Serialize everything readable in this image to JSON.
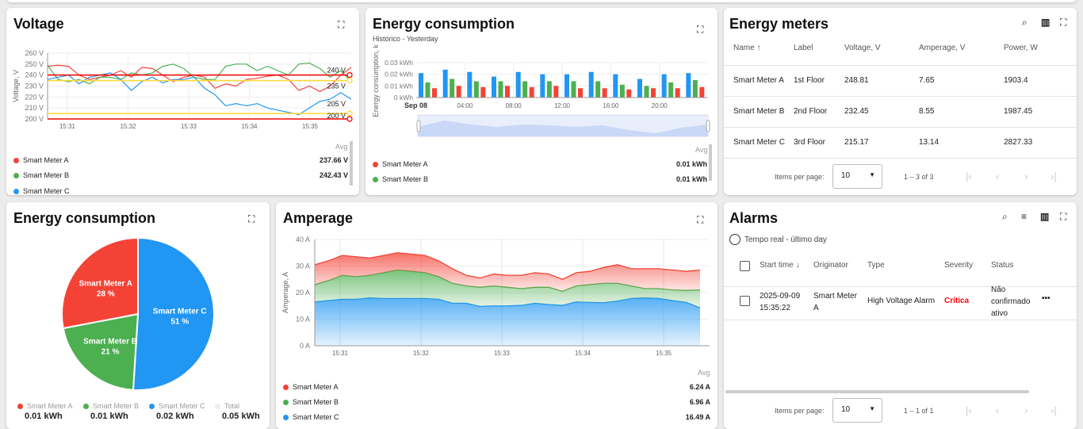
{
  "colors": {
    "a": "#f44336",
    "b": "#4caf50",
    "c": "#2196f3",
    "yellow": "#fdd835",
    "red": "#f00"
  },
  "voltage": {
    "title": "Voltage",
    "ylabel": "Voltage, V",
    "avg_label": "Avg",
    "legend": [
      {
        "name": "Smart Meter A",
        "avg": "237.66 V"
      },
      {
        "name": "Smart Meter B",
        "avg": "242.43 V"
      },
      {
        "name": "Smart Meter C"
      }
    ]
  },
  "energy_bar": {
    "title": "Energy consumption",
    "subtitle": "Histórico - Yesterday",
    "ylabel": "Energy consumption, k",
    "avg_label": "Avg",
    "legend": [
      {
        "name": "Smart Meter A",
        "avg": "0.01 kWh"
      },
      {
        "name": "Smart Meter B",
        "avg": "0.01 kWh"
      }
    ]
  },
  "meters": {
    "title": "Energy meters",
    "columns": [
      "Name",
      "Label",
      "Voltage, V",
      "Amperage, V",
      "Power, W"
    ],
    "rows": [
      [
        "Smart Meter A",
        "1st Floor",
        "248.81",
        "7.65",
        "1903.4"
      ],
      [
        "Smart Meter B",
        "2nd Floor",
        "232.45",
        "8.55",
        "1987.45"
      ],
      [
        "Smart Meter C",
        "3rd Floor",
        "215.17",
        "13.14",
        "2827.33"
      ]
    ],
    "items_per_page_label": "Items per page:",
    "items_per_page": "10",
    "range": "1 – 3 of 3"
  },
  "pie": {
    "title": "Energy consumption",
    "legend": [
      {
        "name": "Smart Meter A",
        "value": "0.01 kWh"
      },
      {
        "name": "Smart Meter B",
        "value": "0.01 kWh"
      },
      {
        "name": "Smart Meter C",
        "value": "0.02 kWh"
      },
      {
        "name": "Total",
        "value": "0.05 kWh"
      }
    ]
  },
  "amperage": {
    "title": "Amperage",
    "ylabel": "Amperage, A",
    "avg_label": "Avg",
    "legend": [
      {
        "name": "Smart Meter A",
        "avg": "6.24 A"
      },
      {
        "name": "Smart Meter B",
        "avg": "6.96 A"
      },
      {
        "name": "Smart Meter C",
        "avg": "16.49 A"
      }
    ]
  },
  "alarms": {
    "title": "Alarms",
    "timewindow": "Tempo real - último day",
    "columns": [
      "Start time",
      "Originator",
      "Type",
      "Severity",
      "Status"
    ],
    "rows": [
      {
        "start_time": "2025-09-09 15:35:22",
        "originator": "Smart Meter A",
        "type": "High Voltage Alarm",
        "severity": "Crítica",
        "status": "Não confirmado ativo"
      }
    ],
    "items_per_page_label": "Items per page:",
    "items_per_page": "10",
    "range": "1 – 1 of 1"
  },
  "chart_data": [
    {
      "type": "line",
      "title": "Voltage",
      "ylabel": "Voltage, V",
      "ylim": [
        200,
        260
      ],
      "yticks": [
        "200 V",
        "210 V",
        "220 V",
        "230 V",
        "240 V",
        "250 V",
        "260 V"
      ],
      "x_start": "15:30:40",
      "x_end": "15:35:40",
      "xticks": [
        "15:31",
        "15:32",
        "15:33",
        "15:34",
        "15:35"
      ],
      "thresholds": [
        {
          "value": 240,
          "label": "240 V",
          "color": "red"
        },
        {
          "value": 235,
          "label": "235 V",
          "color": "yellow"
        },
        {
          "value": 205,
          "label": "205 V",
          "color": "yellow"
        },
        {
          "value": 200,
          "label": "200 V",
          "color": "red"
        }
      ],
      "series": [
        {
          "name": "Smart Meter A",
          "color": "#f44336",
          "values": [
            248,
            249,
            248,
            240,
            236,
            238,
            240,
            244,
            238,
            247,
            246,
            240,
            234,
            238,
            240,
            238,
            228,
            232,
            230,
            236,
            237,
            239,
            240,
            236,
            226,
            230,
            225,
            230,
            240,
            247
          ]
        },
        {
          "name": "Smart Meter B",
          "color": "#4caf50",
          "values": [
            249,
            236,
            234,
            236,
            232,
            238,
            238,
            236,
            242,
            240,
            242,
            248,
            250,
            246,
            238,
            236,
            236,
            248,
            250,
            250,
            244,
            248,
            244,
            240,
            250,
            251,
            246,
            238,
            244,
            234
          ]
        },
        {
          "name": "Smart Meter C",
          "color": "#2196f3",
          "values": [
            236,
            238,
            240,
            232,
            238,
            240,
            242,
            236,
            226,
            234,
            238,
            233,
            236,
            236,
            238,
            228,
            222,
            212,
            214,
            212,
            214,
            210,
            208,
            206,
            204,
            210,
            216,
            218,
            224,
            218
          ]
        }
      ]
    },
    {
      "type": "bar",
      "title": "Energy consumption",
      "ylabel": "Energy consumption, k",
      "ylim": [
        0,
        0.03
      ],
      "yticks": [
        "0 kWh",
        "0.01 kWh",
        "0.02 kWh",
        "0.03 kWh"
      ],
      "xticks": [
        "Sep 08",
        "04:00",
        "08:00",
        "12:00",
        "16:00",
        "20:00"
      ],
      "series": [
        {
          "name": "Smart Meter C",
          "color": "#2196f3",
          "values": [
            0.021,
            0.024,
            0.022,
            0.018,
            0.022,
            0.02,
            0.02,
            0.022,
            0.02,
            0.016,
            0.02,
            0.021
          ]
        },
        {
          "name": "Smart Meter B",
          "color": "#4caf50",
          "values": [
            0.013,
            0.016,
            0.014,
            0.014,
            0.014,
            0.014,
            0.014,
            0.014,
            0.011,
            0.01,
            0.013,
            0.015
          ]
        },
        {
          "name": "Smart Meter A",
          "color": "#f44336",
          "values": [
            0.008,
            0.01,
            0.009,
            0.01,
            0.009,
            0.01,
            0.008,
            0.008,
            0.007,
            0.008,
            0.008,
            0.009
          ]
        }
      ]
    },
    {
      "type": "pie",
      "slices": [
        {
          "name": "Smart Meter C",
          "percent": 51,
          "color": "#2196f3"
        },
        {
          "name": "Smart Meter B",
          "percent": 21,
          "color": "#4caf50"
        },
        {
          "name": "Smart Meter A",
          "percent": 28,
          "color": "#f44336"
        }
      ]
    },
    {
      "type": "area",
      "stacked": true,
      "title": "Amperage",
      "ylabel": "Amperage, A",
      "ylim": [
        0,
        40
      ],
      "yticks": [
        "0 A",
        "10 A",
        "20 A",
        "30 A",
        "40 A"
      ],
      "x_start": "15:30:40",
      "x_end": "15:35:35",
      "xticks": [
        "15:31",
        "15:32",
        "15:33",
        "15:34",
        "15:35"
      ],
      "series": [
        {
          "name": "Smart Meter C",
          "color": "#2196f3",
          "values": [
            16.5,
            17,
            17.5,
            17.5,
            18,
            17.8,
            17.8,
            17.8,
            17.8,
            17.5,
            16,
            16,
            14.8,
            15,
            15,
            15.2,
            16,
            15.5,
            15.2,
            16.5,
            16.3,
            16.2,
            16.8,
            17.8,
            18,
            17.8,
            17,
            16.3,
            14.3
          ]
        },
        {
          "name": "Smart Meter B",
          "color": "#4caf50",
          "values": [
            6.5,
            7.5,
            9,
            8.5,
            8.5,
            9.7,
            10.7,
            10.2,
            9.7,
            8.5,
            7.5,
            6.5,
            7.2,
            7.5,
            7,
            6.3,
            6,
            6.5,
            5.3,
            6,
            6.7,
            7.3,
            6.7,
            4.7,
            3.5,
            3.7,
            4,
            4.5,
            6.7
          ]
        },
        {
          "name": "Smart Meter A",
          "color": "#f44336",
          "values": [
            7.5,
            7.5,
            7.5,
            7.5,
            6.5,
            6.5,
            6.5,
            6.5,
            6.5,
            6,
            5.5,
            4,
            3.5,
            4.5,
            4.5,
            5,
            5.5,
            5,
            4.5,
            5,
            5,
            6,
            7,
            6.5,
            7.5,
            7.5,
            7.5,
            7.2,
            7.5
          ]
        }
      ]
    }
  ]
}
